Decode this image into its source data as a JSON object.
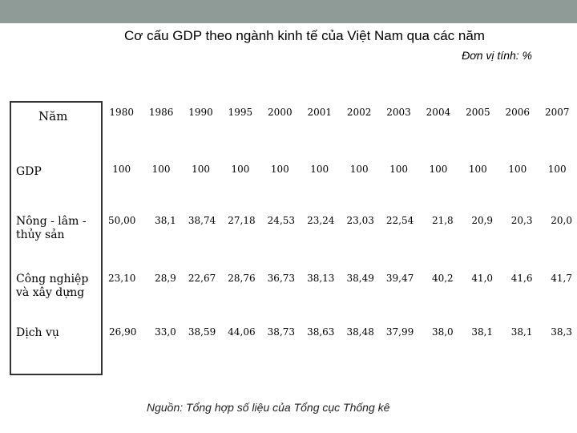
{
  "title": "Cơ cấu GDP theo ngành kinh tế của Việt Nam qua các năm",
  "unit": "Đơn vị tính: %",
  "source": "Nguồn: Tổng hợp số liệu của Tổng cục Thống kê",
  "table": {
    "header_label": "Năm",
    "years": [
      "1980",
      "1986",
      "1990",
      "1995",
      "2000",
      "2001",
      "2002",
      "2003",
      "2004",
      "2005",
      "2006",
      "2007"
    ],
    "rows": [
      {
        "label": "GDP",
        "values": [
          "100",
          "100",
          "100",
          "100",
          "100",
          "100",
          "100",
          "100",
          "100",
          "100",
          "100",
          "100"
        ]
      },
      {
        "label": "Nông - lâm - thủy sản",
        "values": [
          "50,00",
          "38,1",
          "38,74",
          "27,18",
          "24,53",
          "23,24",
          "23,03",
          "22,54",
          "21,8",
          "20,9",
          "20,3",
          "20,0"
        ]
      },
      {
        "label": "Công nghiệp và xây dựng",
        "values": [
          "23,10",
          "28,9",
          "22,67",
          "28,76",
          "36,73",
          "38,13",
          "38,49",
          "39,47",
          "40,2",
          "41,0",
          "41,6",
          "41,7"
        ]
      },
      {
        "label": "Dịch vụ",
        "values": [
          "26,90",
          "33,0",
          "38,59",
          "44,06",
          "38,73",
          "38,63",
          "38,48",
          "37,99",
          "38,0",
          "38,1",
          "38,1",
          "38,3"
        ]
      }
    ]
  }
}
